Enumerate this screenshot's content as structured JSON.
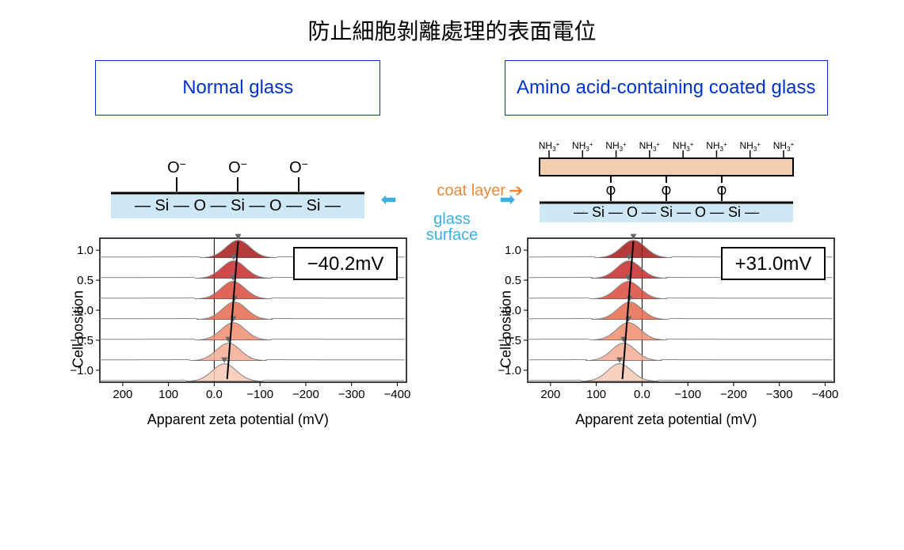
{
  "title": "防止細胞剝離處理的表面電位",
  "middle": {
    "coat_label": "coat layer",
    "glass_label_1": "glass",
    "glass_label_2": "surface"
  },
  "left": {
    "box_label": "Normal glass",
    "schematic": {
      "glass_band_color": "#cde8f4",
      "si_chain": "— Si — O — Si — O — Si —",
      "top_groups": [
        "O⁻",
        "O⁻",
        "O⁻"
      ]
    },
    "chart": {
      "value_label": "−40.2mV",
      "x_label": "Apparent zeta potential (mV)",
      "y_label": "Cell position",
      "x_ticks": [
        200,
        100,
        "0.0",
        -100,
        -200,
        -300,
        -400
      ],
      "y_ticks": [
        "1.0",
        "0.5",
        "0.0",
        "−0.5",
        "−1.0"
      ],
      "fit_x": -40.2,
      "xlim": [
        250,
        -420
      ],
      "ylim": [
        -1.2,
        1.2
      ],
      "peak_colors": [
        "#a81818",
        "#c52a2a",
        "#d84a3a",
        "#e66a50",
        "#ef8d70",
        "#f4ac92",
        "#f7c9b5"
      ],
      "bg": "#ffffff",
      "axis_color": "#000000",
      "grid_color": "#888888"
    }
  },
  "right": {
    "box_label": "Amino acid-containing coated glass",
    "schematic": {
      "glass_band_color": "#cde8f4",
      "coat_band_color": "#f0ceae",
      "si_chain": "— Si — O — Si — O — Si —",
      "o_links": [
        "O",
        "O",
        "O"
      ],
      "top_groups": [
        "NH₃⁺",
        "NH₃⁺",
        "NH₃⁺",
        "NH₃⁺",
        "NH₃⁺",
        "NH₃⁺",
        "NH₃⁺",
        "NH₃⁺"
      ]
    },
    "chart": {
      "value_label": "+31.0mV",
      "x_label": "Apparent zeta potential (mV)",
      "y_label": "Cell position",
      "x_ticks": [
        200,
        100,
        "0.0",
        -100,
        -200,
        -300,
        -400
      ],
      "y_ticks": [
        "1.0",
        "0.5",
        "0.0",
        "−0.5",
        "−1.0"
      ],
      "fit_x": 31.0,
      "xlim": [
        250,
        -420
      ],
      "ylim": [
        -1.2,
        1.2
      ],
      "peak_colors": [
        "#a81818",
        "#c52a2a",
        "#d84a3a",
        "#e66a50",
        "#ef8d70",
        "#f4ac92",
        "#f7c9b5"
      ],
      "bg": "#ffffff",
      "axis_color": "#000000",
      "grid_color": "#888888"
    }
  }
}
